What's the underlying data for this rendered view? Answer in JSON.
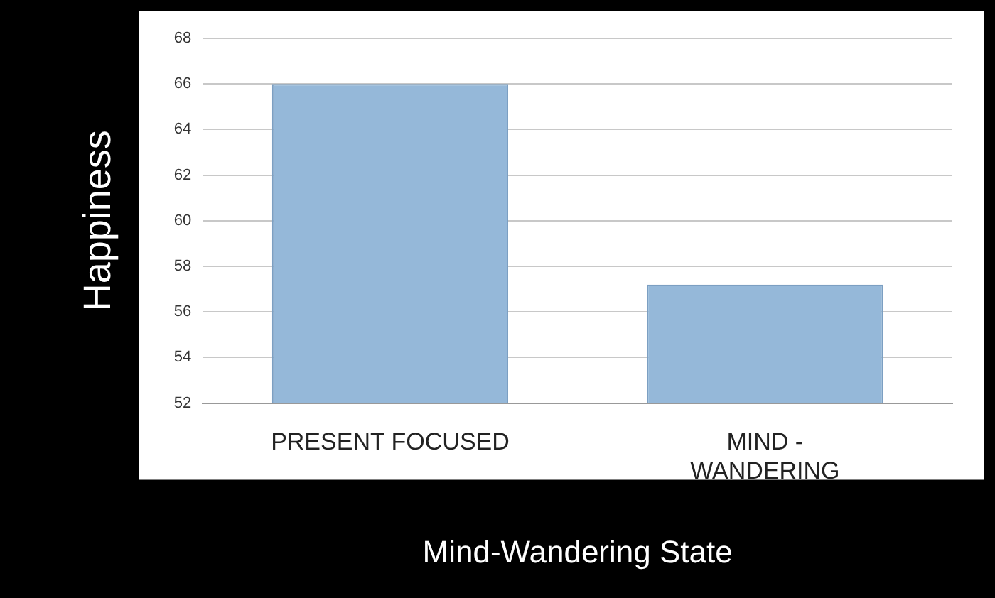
{
  "chart_data": {
    "type": "bar",
    "xlabel": "Mind-Wandering State",
    "ylabel": "Happiness",
    "categories": [
      "PRESENT FOCUSED",
      "MIND - WANDERING"
    ],
    "values": [
      66,
      57.2
    ],
    "color": "#95b8d9",
    "ylim": [
      52,
      68
    ],
    "yticks": [
      52,
      54,
      56,
      58,
      60,
      62,
      64,
      66,
      68
    ],
    "grid": "y",
    "legend": false
  }
}
